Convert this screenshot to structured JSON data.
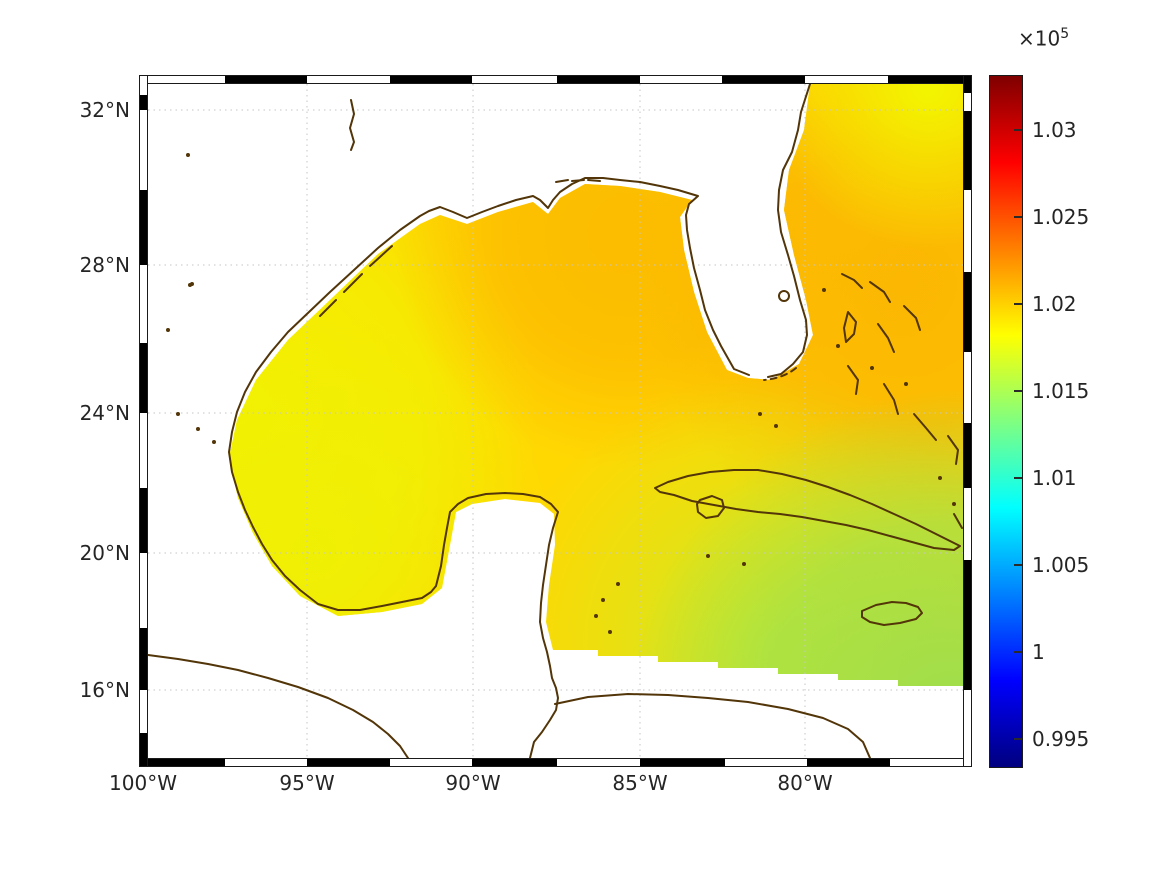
{
  "figure": {
    "background_color": "#ffffff",
    "description": "Map plot of a sea-level pressure field (Pa, x10^5) over the Gulf of Mexico, Florida, Cuba and the NW Caribbean, jet colormap, black-and-white map frame"
  },
  "chart_data": {
    "type": "heatmap",
    "title": "",
    "xlabel": "",
    "ylabel": "",
    "grid": true,
    "gridline_color": "#c6c6c6",
    "coastline_color": "#523508",
    "land_mask_color": "#ffffff",
    "x_axis": {
      "ticks": [
        {
          "label": "100°W",
          "px": 143
        },
        {
          "label": "95°W",
          "px": 307
        },
        {
          "label": "90°W",
          "px": 473
        },
        {
          "label": "85°W",
          "px": 640
        },
        {
          "label": "80°W",
          "px": 805
        }
      ]
    },
    "y_axis": {
      "ticks": [
        {
          "label": "32°N",
          "py": 110
        },
        {
          "label": "28°N",
          "py": 265
        },
        {
          "label": "24°N",
          "py": 413
        },
        {
          "label": "20°N",
          "py": 553
        },
        {
          "label": "16°N",
          "py": 690
        }
      ]
    },
    "lon_range_deg_west": [
      100.5,
      75.2
    ],
    "lat_range_deg_north": [
      14.9,
      32.7
    ],
    "colorbar": {
      "position": "right",
      "colormap": "jet",
      "exponent_text": "×10",
      "exponent_power": "5",
      "value_range_x1e5": [
        0.9933,
        1.0332
      ],
      "ticks": [
        {
          "label": "1.03",
          "py": 130
        },
        {
          "label": "1.025",
          "py": 217
        },
        {
          "label": "1.02",
          "py": 304
        },
        {
          "label": "1.015",
          "py": 391
        },
        {
          "label": "1.01",
          "py": 478
        },
        {
          "label": "1.005",
          "py": 565
        },
        {
          "label": "1",
          "py": 652
        },
        {
          "label": "0.995",
          "py": 739
        }
      ]
    },
    "field_region_estimates_x1e5": [
      {
        "region": "Atlantic east of Florida (~28N 78W)",
        "value": 1.022
      },
      {
        "region": "NE Gulf of Mexico (~28N 86W)",
        "value": 1.021
      },
      {
        "region": "Central Gulf of Mexico (~25N 90W)",
        "value": 1.02
      },
      {
        "region": "Atlantic at 32N (~77W)",
        "value": 1.019
      },
      {
        "region": "Western Gulf of Mexico (~22N 96W)",
        "value": 1.018
      },
      {
        "region": "Yucatan Channel (~21.5N 86W)",
        "value": 1.017
      },
      {
        "region": "NW Caribbean (~19N 84W)",
        "value": 1.016
      },
      {
        "region": "SE Caribbean near Jamaica (~17.5N 77W)",
        "value": 1.014
      }
    ],
    "frame": {
      "thickness": 9,
      "top": {
        "orient": "h",
        "pos": 75,
        "bounds": [
          139,
          225,
          307,
          390,
          472,
          557,
          640,
          722,
          805,
          888,
          972
        ],
        "first": "white"
      },
      "bottom": {
        "orient": "h",
        "pos": 758,
        "bounds": [
          139,
          225,
          307,
          390,
          472,
          557,
          640,
          725,
          807,
          890,
          972
        ],
        "first": "black"
      },
      "left": {
        "orient": "v",
        "pos": 139,
        "bounds": [
          75,
          95,
          110,
          190,
          265,
          343,
          413,
          488,
          553,
          628,
          690,
          733,
          767
        ],
        "first": "white"
      },
      "right": {
        "orient": "v",
        "pos": 963,
        "bounds": [
          75,
          93,
          111,
          190,
          272,
          352,
          423,
          488,
          560,
          690,
          767
        ],
        "first": "black"
      }
    }
  }
}
